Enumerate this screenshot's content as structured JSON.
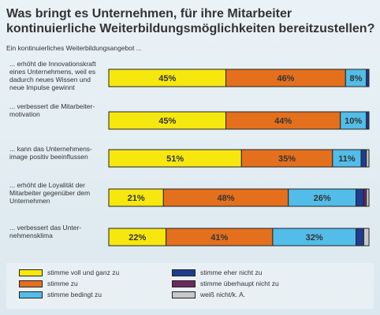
{
  "title": "Was bringt es Unternehmen, für ihre Mitarbeiter kontinuierliche Weiterbildungsmöglichkeiten bereitzustellen?",
  "subtitle": "Ein kontinuierliches Weiterbildungsangebot ...",
  "colors": {
    "stimme_voll": "#f6e80f",
    "stimme_zu": "#e4701e",
    "bedingt": "#52bde8",
    "eher_nicht": "#1f3c8f",
    "ueberhaupt_nicht": "#6b2a5e",
    "weiss_nicht": "#c9c9c9"
  },
  "chart_data": {
    "type": "bar",
    "orientation": "horizontal-stacked",
    "categories": [
      "... erhöht die Innovationskraft eines Unternehmens, weil es dadurch neues Wissen und neue Impulse gewinnt",
      "... verbessert die Mitarbeitermotivation",
      "... kann das Unternehmensimage positiv beeinflussen",
      "... erhöht die Loyalität der Mitarbeiter gegenüber dem Unternehmen",
      "... verbessert das Unternehmensklima"
    ],
    "category_lines": [
      [
        "... erhöht die Innovationskraft",
        "eines Unternehmens, weil es",
        "dadurch neues Wissen und",
        "neue Impulse gewinnt"
      ],
      [
        "... verbessert die Mitarbeiter-",
        "motivation"
      ],
      [
        "... kann das Unternehmens-",
        "image positiv beeinflussen"
      ],
      [
        "... erhöht die Loyalität der",
        "Mitarbeiter gegenüber dem",
        "Unternehmen"
      ],
      [
        "... verbessert das Unter-",
        "nehmensklima"
      ]
    ],
    "series": [
      {
        "name": "stimme voll und ganz zu",
        "color": "#f6e80f",
        "values": [
          45,
          45,
          51,
          21,
          22
        ]
      },
      {
        "name": "stimme zu",
        "color": "#e4701e",
        "values": [
          46,
          44,
          35,
          48,
          41
        ]
      },
      {
        "name": "stimme bedingt zu",
        "color": "#52bde8",
        "values": [
          8,
          10,
          11,
          26,
          32
        ]
      },
      {
        "name": "stimme eher nicht zu",
        "color": "#1f3c8f",
        "values": [
          1,
          1,
          2,
          3,
          3
        ]
      },
      {
        "name": "stimme überhaupt nicht zu",
        "color": "#6b2a5e",
        "values": [
          0,
          0,
          0,
          1,
          0
        ]
      },
      {
        "name": "weiß nicht/k. A.",
        "color": "#c9c9c9",
        "values": [
          0,
          0,
          1,
          1,
          2
        ]
      }
    ],
    "data_labels": [
      [
        "45%",
        "46%",
        "8%",
        "",
        "",
        ""
      ],
      [
        "45%",
        "44%",
        "10%",
        "",
        "",
        ""
      ],
      [
        "51%",
        "35%",
        "11%",
        "",
        "",
        ""
      ],
      [
        "21%",
        "48%",
        "26%",
        "",
        "",
        ""
      ],
      [
        "22%",
        "41%",
        "32%",
        "",
        "",
        ""
      ]
    ],
    "xlim": [
      0,
      100
    ],
    "legend": "bottom"
  }
}
